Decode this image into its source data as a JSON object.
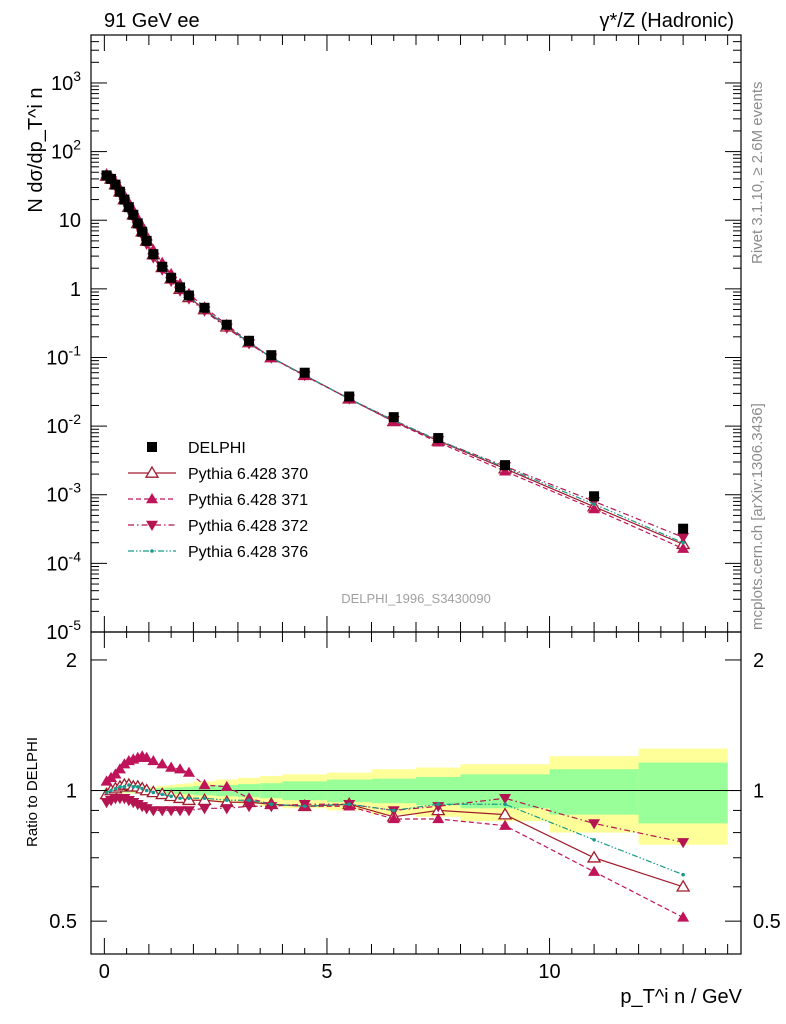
{
  "header": {
    "left_title": "91 GeV ee",
    "right_title": "γ*/Z (Hadronic)"
  },
  "side_labels": {
    "rivet": "Rivet 3.1.10, ≥ 2.6M events",
    "mcplots": "mcplots.cern.ch [arXiv:1306.3436]"
  },
  "analysis_id": "DELPHI_1996_S3430090",
  "colors": {
    "data": "#000000",
    "p370": "#a01c2c",
    "p371": "#c0145a",
    "p372": "#b41450",
    "p376": "#1a9a8a",
    "band_inner": "#99ff99",
    "band_outer": "#ffff99"
  },
  "chart_data": [
    {
      "type": "scatter",
      "panel": "main",
      "ylabel": "N dσ/dp_T^i n",
      "yscale": "log",
      "xlim": [
        -0.3,
        14.3
      ],
      "ylim": [
        1e-05,
        5000
      ],
      "y_tick_labels": [
        "10^-5",
        "10^-4",
        "10^-3",
        "10^-2",
        "10^-1",
        "1",
        "10",
        "10^2",
        "10^3"
      ],
      "legend_position": "bottom-left",
      "x": [
        0.05,
        0.15,
        0.25,
        0.35,
        0.45,
        0.55,
        0.65,
        0.75,
        0.85,
        0.95,
        1.1,
        1.3,
        1.5,
        1.7,
        1.9,
        2.25,
        2.75,
        3.25,
        3.75,
        4.5,
        5.5,
        6.5,
        7.5,
        9.0,
        11.0,
        13.0
      ],
      "series": [
        {
          "name": "DELPHI",
          "marker": "filled-square",
          "values": [
            45,
            40,
            33,
            26,
            20,
            15.5,
            12,
            9,
            6.8,
            5.0,
            3.2,
            2.1,
            1.45,
            1.05,
            0.8,
            0.53,
            0.3,
            0.175,
            0.108,
            0.06,
            0.027,
            0.0135,
            0.0067,
            0.0027,
            0.00095,
            0.00032
          ]
        },
        {
          "name": "Pythia 6.428 370",
          "marker": "open-triangle-up",
          "style": "solid",
          "values": [
            44,
            40,
            33,
            26,
            20,
            15.5,
            12,
            9,
            6.8,
            5.0,
            3.15,
            2.05,
            1.4,
            0.99,
            0.75,
            0.5,
            0.28,
            0.165,
            0.1,
            0.055,
            0.025,
            0.0117,
            0.0061,
            0.0024,
            0.00067,
            0.00019
          ]
        },
        {
          "name": "Pythia 6.428 371",
          "marker": "filled-triangle-up",
          "style": "dashed",
          "values": [
            47,
            43,
            36,
            29,
            23,
            18,
            14,
            10.7,
            8.2,
            5.9,
            3.7,
            2.4,
            1.65,
            1.18,
            0.85,
            0.54,
            0.3,
            0.168,
            0.099,
            0.054,
            0.025,
            0.0116,
            0.0058,
            0.0022,
            0.00062,
            0.000164
          ]
        },
        {
          "name": "Pythia 6.428 372",
          "marker": "filled-triangle-down",
          "style": "dash-dot",
          "values": [
            42,
            38,
            31,
            24.5,
            18.7,
            14.3,
            11,
            8.2,
            6.1,
            4.5,
            2.85,
            1.9,
            1.3,
            0.94,
            0.72,
            0.48,
            0.27,
            0.16,
            0.099,
            0.055,
            0.025,
            0.0122,
            0.0062,
            0.0026,
            0.0008,
            0.00024
          ]
        },
        {
          "name": "Pythia 6.428 376",
          "marker": "small-dot",
          "style": "dash-dot-dot",
          "values": [
            44,
            40,
            33,
            26,
            20,
            15.5,
            12,
            9,
            6.8,
            5.0,
            3.15,
            2.05,
            1.4,
            1.0,
            0.76,
            0.51,
            0.285,
            0.165,
            0.1,
            0.055,
            0.025,
            0.0121,
            0.0062,
            0.0025,
            0.00073,
            0.0002
          ]
        }
      ]
    },
    {
      "type": "line",
      "panel": "ratio",
      "ylabel": "Ratio to DELPHI",
      "xlabel": "p_T^i n / GeV",
      "xlim": [
        -0.3,
        14.3
      ],
      "ylim": [
        0.42,
        2.32
      ],
      "x_ticks": [
        0,
        5,
        10
      ],
      "y_ticks": [
        0.5,
        1,
        2
      ],
      "x": [
        0.05,
        0.15,
        0.25,
        0.35,
        0.45,
        0.55,
        0.65,
        0.75,
        0.85,
        0.95,
        1.1,
        1.3,
        1.5,
        1.7,
        1.9,
        2.25,
        2.75,
        3.25,
        3.75,
        4.5,
        5.5,
        6.5,
        7.5,
        9.0,
        11.0,
        13.0
      ],
      "bins": [
        [
          0,
          0.1
        ],
        [
          0.1,
          0.2
        ],
        [
          0.2,
          0.3
        ],
        [
          0.3,
          0.4
        ],
        [
          0.4,
          0.5
        ],
        [
          0.5,
          0.6
        ],
        [
          0.6,
          0.7
        ],
        [
          0.7,
          0.8
        ],
        [
          0.8,
          0.9
        ],
        [
          0.9,
          1.0
        ],
        [
          1.0,
          1.2
        ],
        [
          1.2,
          1.4
        ],
        [
          1.4,
          1.6
        ],
        [
          1.6,
          1.8
        ],
        [
          1.8,
          2.0
        ],
        [
          2.0,
          2.5
        ],
        [
          2.5,
          3.0
        ],
        [
          3.0,
          3.5
        ],
        [
          3.5,
          4.0
        ],
        [
          4.0,
          5.0
        ],
        [
          5.0,
          6.0
        ],
        [
          6.0,
          7.0
        ],
        [
          7.0,
          8.0
        ],
        [
          8.0,
          10.0
        ],
        [
          10.0,
          12.0
        ],
        [
          12.0,
          14.0
        ]
      ],
      "band_inner": [
        0.01,
        0.01,
        0.01,
        0.01,
        0.01,
        0.01,
        0.01,
        0.01,
        0.01,
        0.01,
        0.012,
        0.014,
        0.016,
        0.018,
        0.02,
        0.025,
        0.03,
        0.035,
        0.04,
        0.05,
        0.06,
        0.065,
        0.075,
        0.09,
        0.12,
        0.16
      ],
      "band_outer": [
        0.015,
        0.015,
        0.015,
        0.015,
        0.015,
        0.015,
        0.015,
        0.015,
        0.015,
        0.015,
        0.02,
        0.025,
        0.03,
        0.035,
        0.04,
        0.05,
        0.06,
        0.07,
        0.08,
        0.09,
        0.1,
        0.12,
        0.13,
        0.15,
        0.2,
        0.25
      ],
      "series": [
        {
          "name": "Pythia 6.428 370",
          "values": [
            0.98,
            1.0,
            1.01,
            1.02,
            1.03,
            1.03,
            1.02,
            1.02,
            1.01,
            1.0,
            0.99,
            0.98,
            0.97,
            0.96,
            0.95,
            0.95,
            0.94,
            0.94,
            0.93,
            0.92,
            0.93,
            0.87,
            0.9,
            0.88,
            0.7,
            0.6
          ]
        },
        {
          "name": "Pythia 6.428 371",
          "values": [
            1.05,
            1.07,
            1.09,
            1.12,
            1.15,
            1.17,
            1.18,
            1.19,
            1.2,
            1.19,
            1.17,
            1.15,
            1.13,
            1.12,
            1.1,
            1.03,
            1.02,
            0.96,
            0.93,
            0.92,
            0.92,
            0.86,
            0.86,
            0.83,
            0.65,
            0.51
          ]
        },
        {
          "name": "Pythia 6.428 372",
          "values": [
            0.94,
            0.95,
            0.96,
            0.96,
            0.96,
            0.95,
            0.94,
            0.93,
            0.92,
            0.91,
            0.9,
            0.9,
            0.9,
            0.9,
            0.9,
            0.91,
            0.91,
            0.92,
            0.92,
            0.93,
            0.93,
            0.9,
            0.92,
            0.96,
            0.84,
            0.76
          ]
        },
        {
          "name": "Pythia 6.428 376",
          "values": [
            0.99,
            1.0,
            1.01,
            1.02,
            1.02,
            1.03,
            1.02,
            1.02,
            1.01,
            1.0,
            0.99,
            0.98,
            0.97,
            0.96,
            0.96,
            0.96,
            0.95,
            0.95,
            0.93,
            0.92,
            0.93,
            0.9,
            0.93,
            0.93,
            0.77,
            0.64
          ]
        }
      ]
    }
  ]
}
